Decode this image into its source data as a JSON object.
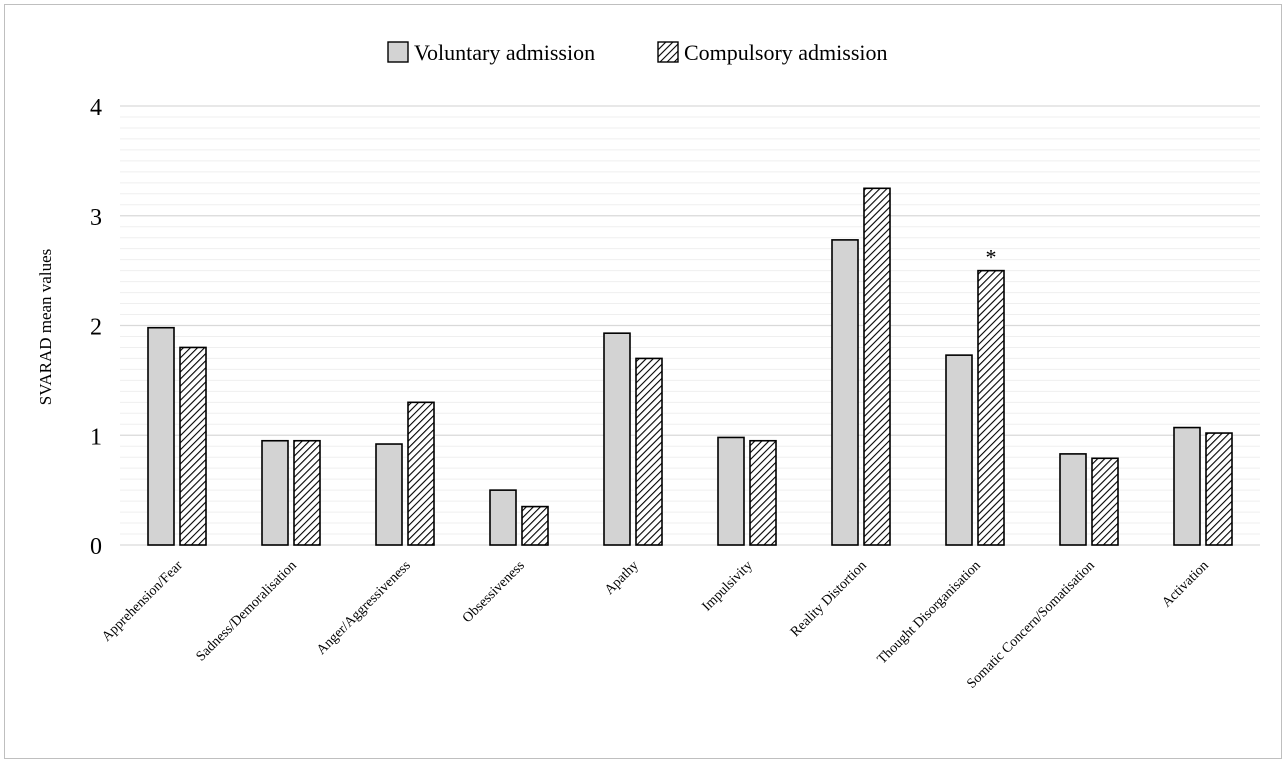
{
  "chart_data": {
    "type": "bar",
    "title": "",
    "xlabel": "",
    "ylabel": "SVARAD mean values",
    "ylim": [
      0,
      4
    ],
    "yticks": [
      "0",
      "1",
      "2",
      "3",
      "4"
    ],
    "grid": true,
    "legend_position": "top-center",
    "categories": [
      "Apprehension/Fear",
      "Sadness/Demoralisation",
      "Anger/Aggressiveness",
      "Obsessiveness",
      "Apathy",
      "Impulsivity",
      "Reality Distortion",
      "Thought Disorganisation",
      "Somatic Concern/Somatisation",
      "Activation"
    ],
    "series": [
      {
        "name": "Voluntary admission",
        "fill": "#d3d3d3",
        "values": [
          1.98,
          0.95,
          0.92,
          0.5,
          1.93,
          0.98,
          2.78,
          1.73,
          0.83,
          1.07
        ]
      },
      {
        "name": "Compulsory admission",
        "fill": "hatch",
        "values": [
          1.8,
          0.95,
          1.3,
          0.35,
          1.7,
          0.95,
          3.25,
          2.5,
          0.79,
          1.02
        ]
      }
    ],
    "annotations": [
      {
        "text": "*",
        "category": "Thought Disorganisation",
        "series": "Compulsory admission"
      }
    ]
  }
}
